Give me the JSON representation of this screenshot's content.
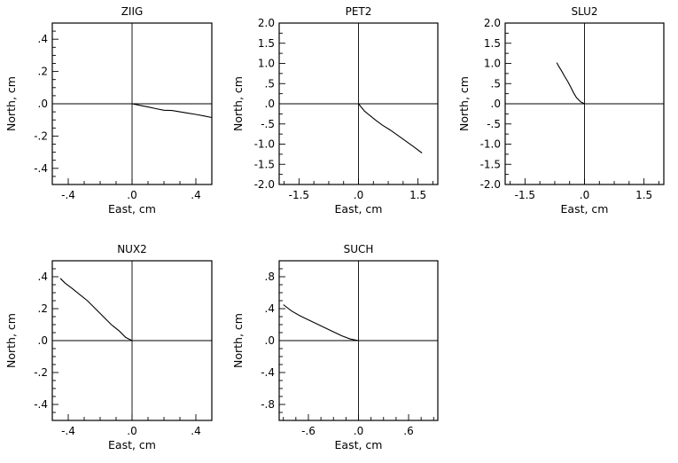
{
  "chart_data": [
    {
      "type": "line",
      "title": "ZIIG",
      "xlabel": "East, cm",
      "ylabel": "North, cm",
      "xlim": [
        -0.5,
        0.5
      ],
      "ylim": [
        -0.5,
        0.5
      ],
      "xticks": [
        -0.4,
        0,
        0.4
      ],
      "xtick_labels": [
        "-.4",
        ".0",
        ".4"
      ],
      "yticks": [
        -0.4,
        -0.2,
        0,
        0.2,
        0.4
      ],
      "ytick_labels": [
        "-.4",
        "-.2",
        ".0",
        ".2",
        ".4"
      ],
      "x": [
        0,
        0.05,
        0.1,
        0.15,
        0.2,
        0.25,
        0.3,
        0.35,
        0.4,
        0.45,
        0.5
      ],
      "y": [
        0,
        -0.01,
        -0.02,
        -0.03,
        -0.04,
        -0.042,
        -0.05,
        -0.058,
        -0.066,
        -0.075,
        -0.085
      ]
    },
    {
      "type": "line",
      "title": "PET2",
      "xlabel": "East, cm",
      "ylabel": "North, cm",
      "xlim": [
        -2.0,
        2.0
      ],
      "ylim": [
        -2.0,
        2.0
      ],
      "xticks": [
        -1.5,
        0,
        1.5
      ],
      "xtick_labels": [
        "-1.5",
        ".0",
        "1.5"
      ],
      "yticks": [
        -2.0,
        -1.5,
        -1.0,
        -0.5,
        0,
        0.5,
        1.0,
        1.5,
        2.0
      ],
      "ytick_labels": [
        "-2.0",
        "-1.5",
        "-1.0",
        "-.5",
        ".0",
        ".5",
        "1.0",
        "1.5",
        "2.0"
      ],
      "x": [
        0,
        0.15,
        0.3,
        0.45,
        0.6,
        0.8,
        1.0,
        1.2,
        1.4,
        1.6
      ],
      "y": [
        0,
        -0.18,
        -0.3,
        -0.42,
        -0.53,
        -0.65,
        -0.79,
        -0.93,
        -1.07,
        -1.22
      ]
    },
    {
      "type": "line",
      "title": "SLU2",
      "xlabel": "East, cm",
      "ylabel": "North, cm",
      "xlim": [
        -2.0,
        2.0
      ],
      "ylim": [
        -2.0,
        2.0
      ],
      "xticks": [
        -1.5,
        0,
        1.5
      ],
      "xtick_labels": [
        "-1.5",
        ".0",
        "1.5"
      ],
      "yticks": [
        -2.0,
        -1.5,
        -1.0,
        -0.5,
        0,
        0.5,
        1.0,
        1.5,
        2.0
      ],
      "ytick_labels": [
        "-2.0",
        "-1.5",
        "-1.0",
        "-.5",
        ".0",
        ".5",
        "1.0",
        "1.5",
        "2.0"
      ],
      "x": [
        0,
        -0.1,
        -0.2,
        -0.28,
        -0.35,
        -0.42,
        -0.5,
        -0.58,
        -0.65,
        -0.7
      ],
      "y": [
        0,
        0.05,
        0.15,
        0.28,
        0.42,
        0.55,
        0.68,
        0.82,
        0.93,
        1.02
      ]
    },
    {
      "type": "line",
      "title": "NUX2",
      "xlabel": "East, cm",
      "ylabel": "North, cm",
      "xlim": [
        -0.5,
        0.5
      ],
      "ylim": [
        -0.5,
        0.5
      ],
      "xticks": [
        -0.4,
        0,
        0.4
      ],
      "xtick_labels": [
        "-.4",
        ".0",
        ".4"
      ],
      "yticks": [
        -0.4,
        -0.2,
        0,
        0.2,
        0.4
      ],
      "ytick_labels": [
        "-.4",
        "-.2",
        ".0",
        ".2",
        ".4"
      ],
      "x": [
        0,
        -0.04,
        -0.08,
        -0.13,
        -0.18,
        -0.23,
        -0.28,
        -0.33,
        -0.38,
        -0.42,
        -0.45
      ],
      "y": [
        0,
        0.02,
        0.06,
        0.1,
        0.15,
        0.2,
        0.25,
        0.29,
        0.33,
        0.36,
        0.39
      ]
    },
    {
      "type": "line",
      "title": "SUCH",
      "xlabel": "East, cm",
      "ylabel": "North, cm",
      "xlim": [
        -0.95,
        0.95
      ],
      "ylim": [
        -1.0,
        1.0
      ],
      "xticks": [
        -0.6,
        0,
        0.6
      ],
      "xtick_labels": [
        "-.6",
        ".0",
        ".6"
      ],
      "yticks": [
        -0.8,
        -0.4,
        0,
        0.4,
        0.8
      ],
      "ytick_labels": [
        "-.8",
        "-.4",
        ".0",
        ".4",
        ".8"
      ],
      "x": [
        0,
        -0.1,
        -0.2,
        -0.3,
        -0.4,
        -0.5,
        -0.6,
        -0.7,
        -0.8,
        -0.9
      ],
      "y": [
        0,
        0.02,
        0.06,
        0.11,
        0.16,
        0.21,
        0.26,
        0.31,
        0.37,
        0.45
      ]
    }
  ]
}
